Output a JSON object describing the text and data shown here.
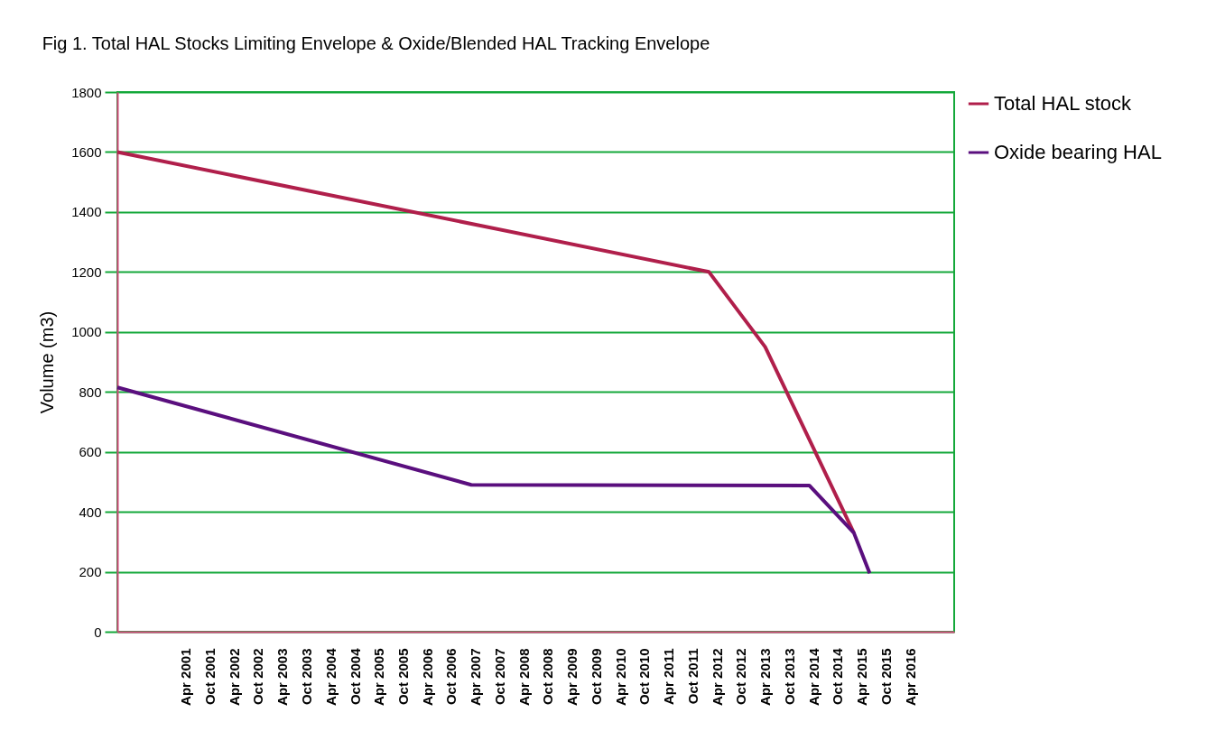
{
  "chart_data": {
    "type": "line",
    "title": "Fig 1. Total HAL Stocks Limiting Envelope & Oxide/Blended HAL Tracking Envelope",
    "ylabel": "Volume (m3)",
    "series": [
      {
        "name": "Total HAL stock",
        "color": "#b01f4b",
        "x": [
          "1999-11",
          "2012-02",
          "2013-04",
          "2015-02"
        ],
        "values": [
          1600,
          1200,
          950,
          330
        ]
      },
      {
        "name": "Oxide bearing HAL",
        "color": "#5a0f7e",
        "x": [
          "1999-11",
          "2007-03",
          "2014-03",
          "2015-02",
          "2015-06"
        ],
        "values": [
          815,
          490,
          488,
          330,
          195
        ]
      }
    ],
    "xlim": [
      "1999-11",
      "2017-03"
    ],
    "xticks": [
      {
        "value": "2001-04",
        "label": "Apr 2001"
      },
      {
        "value": "2001-10",
        "label": "Oct 2001"
      },
      {
        "value": "2002-04",
        "label": "Apr 2002"
      },
      {
        "value": "2002-10",
        "label": "Oct 2002"
      },
      {
        "value": "2003-04",
        "label": "Apr 2003"
      },
      {
        "value": "2003-10",
        "label": "Oct 2003"
      },
      {
        "value": "2004-04",
        "label": "Apr 2004"
      },
      {
        "value": "2004-10",
        "label": "Oct 2004"
      },
      {
        "value": "2005-04",
        "label": "Apr 2005"
      },
      {
        "value": "2005-10",
        "label": "Oct 2005"
      },
      {
        "value": "2006-04",
        "label": "Apr 2006"
      },
      {
        "value": "2006-10",
        "label": "Oct 2006"
      },
      {
        "value": "2007-04",
        "label": "Apr 2007"
      },
      {
        "value": "2007-10",
        "label": "Oct 2007"
      },
      {
        "value": "2008-04",
        "label": "Apr 2008"
      },
      {
        "value": "2008-10",
        "label": "Oct 2008"
      },
      {
        "value": "2009-04",
        "label": "Apr 2009"
      },
      {
        "value": "2009-10",
        "label": "Oct 2009"
      },
      {
        "value": "2010-04",
        "label": "Apr 2010"
      },
      {
        "value": "2010-10",
        "label": "Oct 2010"
      },
      {
        "value": "2011-04",
        "label": "Apr 2011"
      },
      {
        "value": "2011-10",
        "label": "Oct 2011"
      },
      {
        "value": "2012-04",
        "label": "Apr 2012"
      },
      {
        "value": "2012-10",
        "label": "Oct 2012"
      },
      {
        "value": "2013-04",
        "label": "Apr 2013"
      },
      {
        "value": "2013-10",
        "label": "Oct 2013"
      },
      {
        "value": "2014-04",
        "label": "Apr 2014"
      },
      {
        "value": "2014-10",
        "label": "Oct 2014"
      },
      {
        "value": "2015-04",
        "label": "Apr 2015"
      },
      {
        "value": "2015-10",
        "label": "Oct 2015"
      },
      {
        "value": "2016-04",
        "label": "Apr 2016"
      }
    ],
    "ylim": [
      0,
      1800
    ],
    "yticks": [
      0,
      200,
      400,
      600,
      800,
      1000,
      1200,
      1400,
      1600,
      1800
    ],
    "grid": "y",
    "legend": "right",
    "line_style": "solid"
  }
}
